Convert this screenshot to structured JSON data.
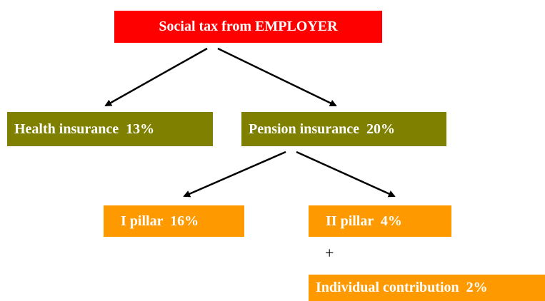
{
  "nodes": [
    {
      "label": "Social tax from EMPLOYER"
    },
    {
      "label": "Health insurance  13%"
    },
    {
      "label": "Pension insurance  20%"
    },
    {
      "label": "I pillar  16%"
    },
    {
      "label": "II pillar  4%"
    },
    {
      "label": "Individual contribution  2%"
    }
  ],
  "plus": "+"
}
